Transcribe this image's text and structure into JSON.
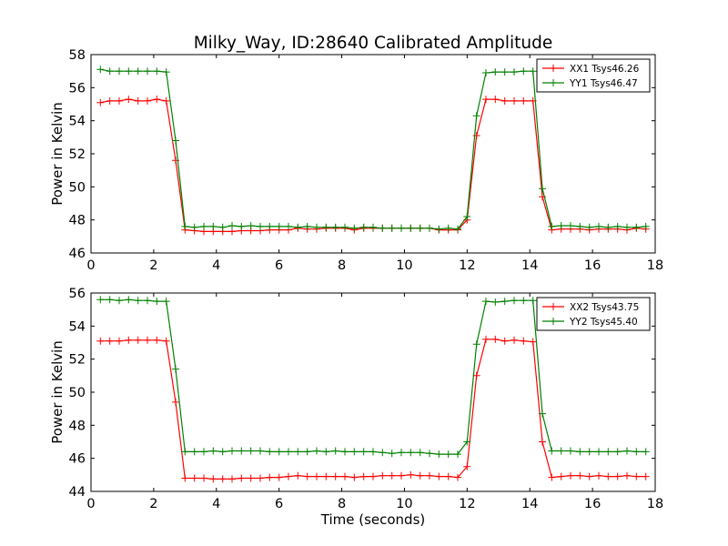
{
  "title": "Milky_Way, ID:28640 Calibrated Amplitude",
  "chart_data": [
    {
      "type": "line",
      "ylabel": "Power in Kelvin",
      "xlabel": "",
      "xlim": [
        0,
        18
      ],
      "ylim": [
        46,
        58
      ],
      "xticks": [
        "0",
        "2",
        "4",
        "6",
        "8",
        "10",
        "12",
        "14",
        "16",
        "18"
      ],
      "yticks": [
        "46",
        "48",
        "50",
        "52",
        "54",
        "56",
        "58"
      ],
      "legend_position": "top-right",
      "grid": false,
      "series": [
        {
          "name": "XX1 Tsys46.26",
          "color": "#ff0000",
          "x": [
            0.3,
            0.6,
            0.9,
            1.2,
            1.5,
            1.8,
            2.1,
            2.4,
            2.7,
            3.0,
            3.3,
            3.6,
            3.9,
            4.2,
            4.5,
            4.8,
            5.1,
            5.4,
            5.7,
            6.0,
            6.3,
            6.6,
            6.9,
            7.2,
            7.5,
            7.8,
            8.1,
            8.4,
            8.7,
            9.0,
            9.3,
            9.6,
            9.9,
            10.2,
            10.5,
            10.8,
            11.1,
            11.4,
            11.7,
            12.0,
            12.3,
            12.6,
            12.9,
            13.2,
            13.5,
            13.8,
            14.1,
            14.4,
            14.7,
            15.0,
            15.3,
            15.6,
            15.9,
            16.2,
            16.5,
            16.8,
            17.1,
            17.4,
            17.7
          ],
          "y": [
            55.1,
            55.2,
            55.2,
            55.3,
            55.2,
            55.2,
            55.3,
            55.2,
            51.6,
            47.4,
            47.35,
            47.3,
            47.3,
            47.3,
            47.3,
            47.35,
            47.35,
            47.35,
            47.4,
            47.4,
            47.4,
            47.5,
            47.45,
            47.45,
            47.5,
            47.5,
            47.5,
            47.4,
            47.5,
            47.5,
            47.5,
            47.5,
            47.5,
            47.5,
            47.5,
            47.5,
            47.4,
            47.4,
            47.4,
            48.0,
            53.1,
            55.3,
            55.3,
            55.2,
            55.2,
            55.2,
            55.2,
            49.4,
            47.4,
            47.45,
            47.45,
            47.45,
            47.4,
            47.45,
            47.45,
            47.45,
            47.4,
            47.5,
            47.45
          ]
        },
        {
          "name": "YY1 Tsys46.47",
          "color": "#008000",
          "x": [
            0.3,
            0.6,
            0.9,
            1.2,
            1.5,
            1.8,
            2.1,
            2.4,
            2.7,
            3.0,
            3.3,
            3.6,
            3.9,
            4.2,
            4.5,
            4.8,
            5.1,
            5.4,
            5.7,
            6.0,
            6.3,
            6.6,
            6.9,
            7.2,
            7.5,
            7.8,
            8.1,
            8.4,
            8.7,
            9.0,
            9.3,
            9.6,
            9.9,
            10.2,
            10.5,
            10.8,
            11.1,
            11.4,
            11.7,
            12.0,
            12.3,
            12.6,
            12.9,
            13.2,
            13.5,
            13.8,
            14.1,
            14.4,
            14.7,
            15.0,
            15.3,
            15.6,
            15.9,
            16.2,
            16.5,
            16.8,
            17.1,
            17.4,
            17.7
          ],
          "y": [
            57.1,
            57.0,
            57.0,
            57.0,
            57.0,
            57.0,
            57.0,
            56.95,
            52.8,
            47.6,
            47.55,
            47.6,
            47.6,
            47.55,
            47.65,
            47.6,
            47.65,
            47.6,
            47.6,
            47.6,
            47.6,
            47.55,
            47.6,
            47.55,
            47.55,
            47.55,
            47.55,
            47.5,
            47.55,
            47.55,
            47.5,
            47.5,
            47.5,
            47.5,
            47.5,
            47.5,
            47.45,
            47.5,
            47.45,
            48.2,
            54.3,
            56.9,
            56.95,
            56.95,
            56.95,
            57.0,
            57.0,
            49.9,
            47.6,
            47.65,
            47.65,
            47.6,
            47.55,
            47.6,
            47.55,
            47.6,
            47.55,
            47.55,
            47.6
          ]
        }
      ]
    },
    {
      "type": "line",
      "ylabel": "Power in Kelvin",
      "xlabel": "Time (seconds)",
      "xlim": [
        0,
        18
      ],
      "ylim": [
        44,
        56
      ],
      "xticks": [
        "0",
        "2",
        "4",
        "6",
        "8",
        "10",
        "12",
        "14",
        "16",
        "18"
      ],
      "yticks": [
        "44",
        "46",
        "48",
        "50",
        "52",
        "54",
        "56"
      ],
      "legend_position": "top-right",
      "grid": false,
      "series": [
        {
          "name": "XX2 Tsys43.75",
          "color": "#ff0000",
          "x": [
            0.3,
            0.6,
            0.9,
            1.2,
            1.5,
            1.8,
            2.1,
            2.4,
            2.7,
            3.0,
            3.3,
            3.6,
            3.9,
            4.2,
            4.5,
            4.8,
            5.1,
            5.4,
            5.7,
            6.0,
            6.3,
            6.6,
            6.9,
            7.2,
            7.5,
            7.8,
            8.1,
            8.4,
            8.7,
            9.0,
            9.3,
            9.6,
            9.9,
            10.2,
            10.5,
            10.8,
            11.1,
            11.4,
            11.7,
            12.0,
            12.3,
            12.6,
            12.9,
            13.2,
            13.5,
            13.8,
            14.1,
            14.4,
            14.7,
            15.0,
            15.3,
            15.6,
            15.9,
            16.2,
            16.5,
            16.8,
            17.1,
            17.4,
            17.7
          ],
          "y": [
            53.1,
            53.1,
            53.1,
            53.15,
            53.15,
            53.15,
            53.15,
            53.1,
            49.4,
            44.8,
            44.8,
            44.8,
            44.75,
            44.75,
            44.75,
            44.8,
            44.8,
            44.8,
            44.85,
            44.85,
            44.9,
            44.95,
            44.9,
            44.9,
            44.9,
            44.9,
            44.9,
            44.85,
            44.9,
            44.9,
            44.95,
            44.95,
            44.95,
            45.0,
            44.95,
            44.95,
            44.9,
            44.9,
            44.85,
            45.5,
            51.0,
            53.2,
            53.2,
            53.1,
            53.15,
            53.1,
            53.05,
            47.0,
            44.85,
            44.9,
            44.95,
            44.95,
            44.9,
            44.95,
            44.9,
            44.9,
            44.95,
            44.9,
            44.9
          ]
        },
        {
          "name": "YY2 Tsys45.40",
          "color": "#008000",
          "x": [
            0.3,
            0.6,
            0.9,
            1.2,
            1.5,
            1.8,
            2.1,
            2.4,
            2.7,
            3.0,
            3.3,
            3.6,
            3.9,
            4.2,
            4.5,
            4.8,
            5.1,
            5.4,
            5.7,
            6.0,
            6.3,
            6.6,
            6.9,
            7.2,
            7.5,
            7.8,
            8.1,
            8.4,
            8.7,
            9.0,
            9.3,
            9.6,
            9.9,
            10.2,
            10.5,
            10.8,
            11.1,
            11.4,
            11.7,
            12.0,
            12.3,
            12.6,
            12.9,
            13.2,
            13.5,
            13.8,
            14.1,
            14.4,
            14.7,
            15.0,
            15.3,
            15.6,
            15.9,
            16.2,
            16.5,
            16.8,
            17.1,
            17.4,
            17.7
          ],
          "y": [
            55.6,
            55.6,
            55.55,
            55.6,
            55.55,
            55.55,
            55.5,
            55.5,
            51.4,
            46.4,
            46.4,
            46.4,
            46.45,
            46.4,
            46.45,
            46.45,
            46.45,
            46.45,
            46.4,
            46.4,
            46.4,
            46.4,
            46.4,
            46.45,
            46.4,
            46.45,
            46.4,
            46.4,
            46.4,
            46.4,
            46.35,
            46.3,
            46.35,
            46.35,
            46.35,
            46.3,
            46.25,
            46.25,
            46.25,
            47.0,
            52.9,
            55.5,
            55.45,
            55.5,
            55.55,
            55.55,
            55.55,
            48.7,
            46.45,
            46.45,
            46.45,
            46.4,
            46.4,
            46.4,
            46.4,
            46.4,
            46.45,
            46.4,
            46.4
          ]
        }
      ]
    }
  ]
}
